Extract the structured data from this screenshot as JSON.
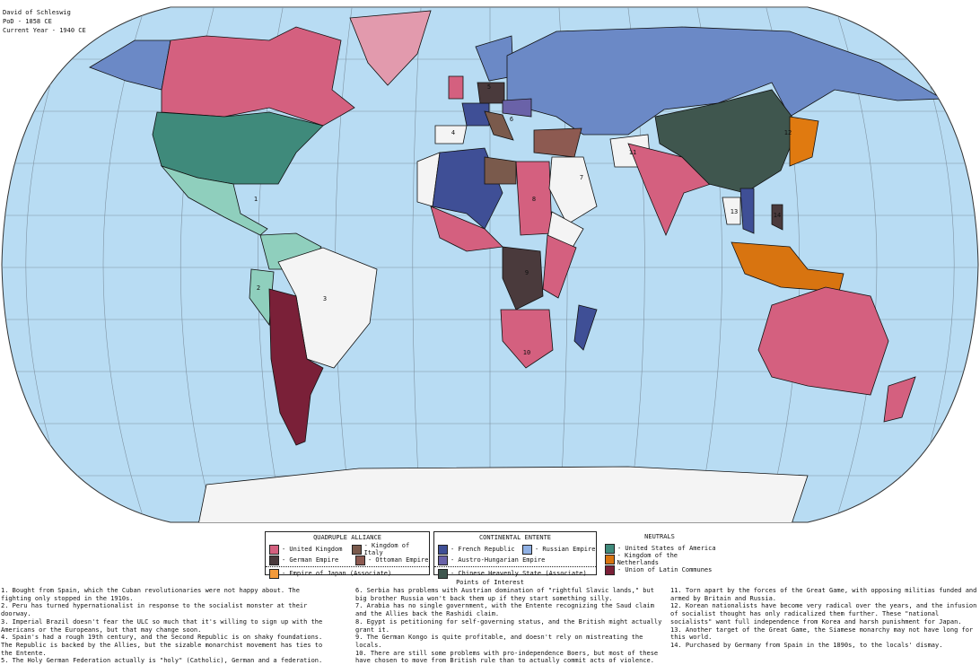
{
  "header": {
    "author": "David of Schleswig",
    "pod": "PoD - 1858 CE",
    "current_year": "Current Year - 1940 CE"
  },
  "colors": {
    "ocean": "#b8dcf3",
    "uk": "#d4607f",
    "germany": "#4a3a3c",
    "japan": "#e07a10",
    "italy": "#7a5a4c",
    "ottoman": "#8d5a51",
    "france": "#3f4f96",
    "russia": "#6b89c6",
    "austria": "#6a62a8",
    "china": "#3f564e",
    "usa": "#3f8a7b",
    "netherlands": "#d87410",
    "ulc": "#7a2038",
    "latin_neutral": "#8fcfbd",
    "unaligned": "#f4f4f4",
    "greenland": "#e29aad"
  },
  "map_labels": [
    "1",
    "2",
    "3",
    "4",
    "5",
    "6",
    "7",
    "8",
    "9",
    "10",
    "11",
    "12",
    "13",
    "14"
  ],
  "legend": {
    "quadruple": {
      "title": "QUADRUPLE ALLIANCE",
      "items": [
        "- United Kingdom",
        "- Kingdom of Italy",
        "- German Empire",
        "- Ottoman Empire",
        "- Empire of Japan (Associate)"
      ]
    },
    "entente": {
      "title": "CONTINENTAL ENTENTE",
      "items": [
        "- French Republic",
        "- Russian Empire",
        "- Austro-Hungarian Empire",
        "- Chinese Heavenly State (Associate)"
      ]
    },
    "neutrals": {
      "title": "NEUTRALS",
      "items": [
        "- United States of America",
        "- Kingdom of the Netherlands",
        "- Union of Latin Communes"
      ]
    }
  },
  "poi": {
    "title": "Points of Interest",
    "notes": [
      "1. Bought from Spain, which the Cuban revolutionaries were not happy about. The fighting only stopped in the 1910s.",
      "2. Peru has turned hypernationalist in response to the socialist monster at their doorway.",
      "3. Imperial Brazil doesn't fear the ULC so much that it's willing to sign up with the Americans or the Europeans, but that may change soon.",
      "4. Spain's had a rough 19th century, and the Second Republic is on shaky foundations. The Republic is backed by the Allies, but the sizable monarchist movement has ties to the Entente.",
      "5. The Holy German Federation actually is \"holy\" (Catholic), German and a federation.",
      "6. Serbia has problems with Austrian domination of \"rightful Slavic lands,\" but big brother Russia won't back them up if they start something silly.",
      "7. Arabia has no single government, with the Entente recognizing the Saud claim and the Allies back the Rashidi claim.",
      "8. Egypt is petitioning for self-governing status, and the British might actually grant it.",
      "9. The German Kongo is quite profitable, and doesn't rely on mistreating the locals.",
      "10. There are still some problems with pro-independence Boers, but most of these have chosen to move from British rule than to actually commit acts of violence.",
      "11. Torn apart by the forces of the Great Game, with opposing militias funded and armed by Britain and Russia.",
      "12. Korean nationalists have become very radical over the years, and the infusion of socialist thought has only radicalized them further. These \"national socialists\" want full independence from Korea and harsh punishment for Japan.",
      "13. Another target of the Great Game, the Siamese monarchy may not have long for this world.",
      "14. Purchased by Germany from Spain in the 1890s, to the locals' dismay."
    ]
  }
}
